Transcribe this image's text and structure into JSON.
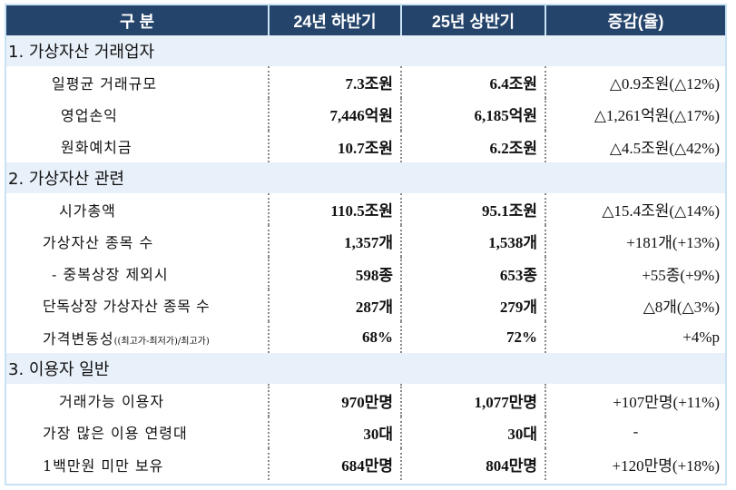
{
  "table": {
    "headers": [
      "구 분",
      "24년 하반기",
      "25년 상반기",
      "증감(율)"
    ],
    "sections": [
      {
        "title": "1. 가상자산 거래업자",
        "rows": [
          {
            "label": "일평균 거래규모",
            "h2_24": "7.3조원",
            "h1_25": "6.4조원",
            "change": "△0.9조원(△12%)"
          },
          {
            "label": "영업손익",
            "h2_24": "7,446억원",
            "h1_25": "6,185억원",
            "change": "△1,261억원(△17%)"
          },
          {
            "label": "원화예치금",
            "h2_24": "10.7조원",
            "h1_25": "6.2조원",
            "change": "△4.5조원(△42%)"
          }
        ]
      },
      {
        "title": "2. 가상자산 관련",
        "rows": [
          {
            "label": "시가총액",
            "h2_24": "110.5조원",
            "h1_25": "95.1조원",
            "change": "△15.4조원(△14%)"
          },
          {
            "label": "가상자산 종목 수",
            "h2_24": "1,357개",
            "h1_25": "1,538개",
            "change": "+181개(+13%)"
          },
          {
            "label": "- 중복상장 제외시",
            "h2_24": "598종",
            "h1_25": "653종",
            "change": "+55종(+9%)"
          },
          {
            "label": "단독상장 가상자산 종목 수",
            "h2_24": "287개",
            "h1_25": "279개",
            "change": "△8개(△3%)"
          },
          {
            "label": "가격변동성",
            "label_note": "((최고가-최저가)/최고가)",
            "h2_24": "68%",
            "h1_25": "72%",
            "change": "+4%p"
          }
        ]
      },
      {
        "title": "3. 이용자 일반",
        "rows": [
          {
            "label": "거래가능 이용자",
            "h2_24": "970만명",
            "h1_25": "1,077만명",
            "change": "+107만명(+11%)"
          },
          {
            "label": "가장 많은 이용 연령대",
            "h2_24": "30대",
            "h1_25": "30대",
            "change": "-"
          },
          {
            "label": "1백만원 미만 보유",
            "h2_24": "684만명",
            "h1_25": "804만명",
            "change": "+120만명(+18%)"
          }
        ]
      }
    ]
  },
  "colors": {
    "header_bg": "#24446b",
    "header_text": "#ffffff",
    "section_bg": "#e8f0f9",
    "frame_border": "#c9e2f4"
  }
}
